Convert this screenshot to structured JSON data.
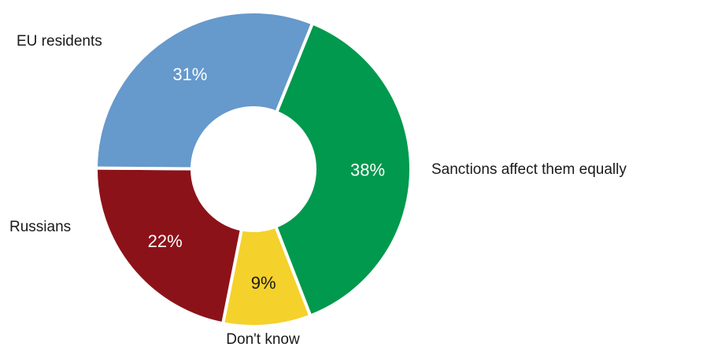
{
  "chart_data": {
    "type": "pie",
    "donut": true,
    "title": "",
    "slices": [
      {
        "label": "Sanctions affect them equally",
        "value": 38,
        "display": "38%",
        "color": "#00994d",
        "text_color": "#ffffff"
      },
      {
        "label": "Don't know",
        "value": 9,
        "display": "9%",
        "color": "#f5d12b",
        "text_color": "#1a1a1a"
      },
      {
        "label": "Russians",
        "value": 22,
        "display": "22%",
        "color": "#8c1219",
        "text_color": "#ffffff"
      },
      {
        "label": "EU residents",
        "value": 31,
        "display": "31%",
        "color": "#6699cc",
        "text_color": "#ffffff"
      }
    ],
    "start_angle_deg": 22,
    "direction": "clockwise",
    "legend": "none"
  }
}
